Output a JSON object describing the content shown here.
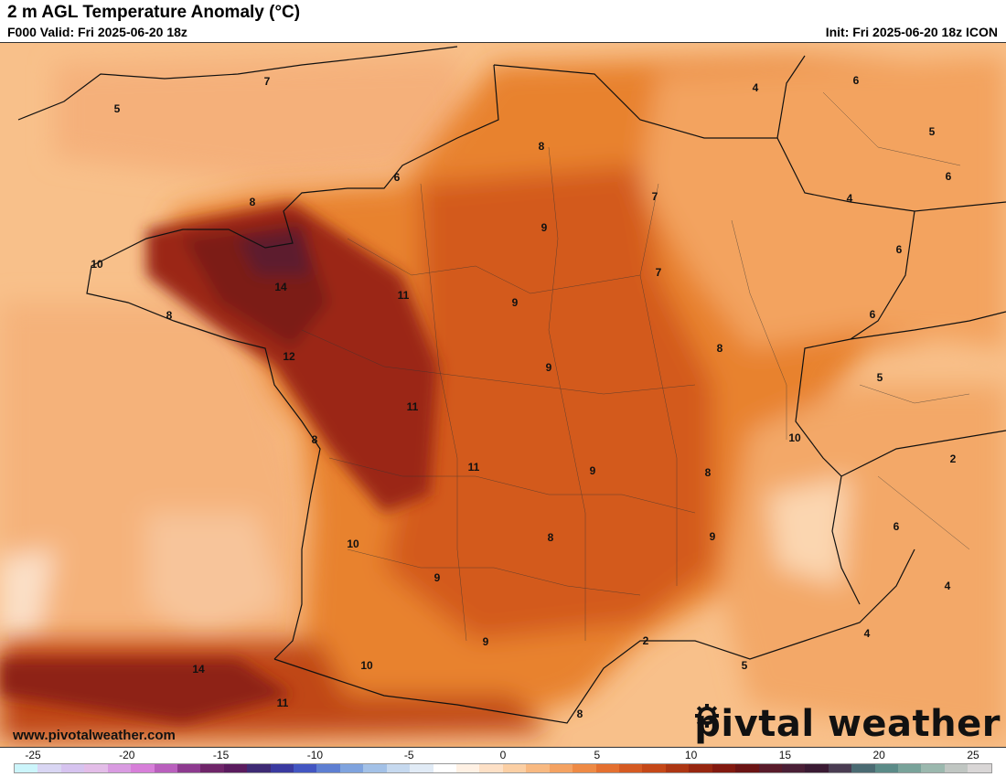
{
  "header": {
    "title": "2 m AGL Temperature Anomaly (°C)",
    "valid": "F000 Valid: Fri 2025-06-20 18z",
    "init": "Init: Fri 2025-06-20 18z ICON"
  },
  "map": {
    "region": "France and surrounding areas",
    "contour_labels": [
      "7",
      "5",
      "4",
      "6",
      "8",
      "5",
      "6",
      "6",
      "8",
      "9",
      "7",
      "4",
      "10",
      "14",
      "11",
      "9",
      "7",
      "6",
      "6",
      "8",
      "12",
      "9",
      "8",
      "5",
      "11",
      "10",
      "8",
      "11",
      "9",
      "8",
      "2",
      "9",
      "6",
      "10",
      "8",
      "9",
      "4",
      "4",
      "2",
      "5",
      "14",
      "10",
      "9",
      "11",
      "8"
    ]
  },
  "footer": {
    "website": "www.pivotalweather.com",
    "logo_left": "piv",
    "logo_right": "tal weather"
  },
  "colorbar": {
    "ticks": [
      "-25",
      "-20",
      "-15",
      "-10",
      "-5",
      "0",
      "5",
      "10",
      "15",
      "20",
      "25"
    ],
    "colors": [
      "#ccf5fb",
      "#d9d6f3",
      "#d6c3ef",
      "#e3bde8",
      "#d99be1",
      "#d77fd9",
      "#b95fbd",
      "#8d3a8f",
      "#6f2569",
      "#5a1b5e",
      "#3e2a74",
      "#3a3aa0",
      "#4356c2",
      "#5e7fd2",
      "#7fa3de",
      "#a3c1e7",
      "#c6d9ef",
      "#e1ebf6",
      "#ffffff",
      "#fff1e4",
      "#fde0c6",
      "#fbcfa4",
      "#f8b981",
      "#f4a262",
      "#ee8a45",
      "#e47030",
      "#d55a22",
      "#c54818",
      "#ad3613",
      "#97260f",
      "#82190f",
      "#6b1414",
      "#591b2a",
      "#4a1f36",
      "#3a1a33",
      "#4a3c52",
      "#4b6b73",
      "#5b8b88",
      "#79a39a",
      "#9bb8ae",
      "#c0c6c2",
      "#d9d6d6"
    ]
  }
}
